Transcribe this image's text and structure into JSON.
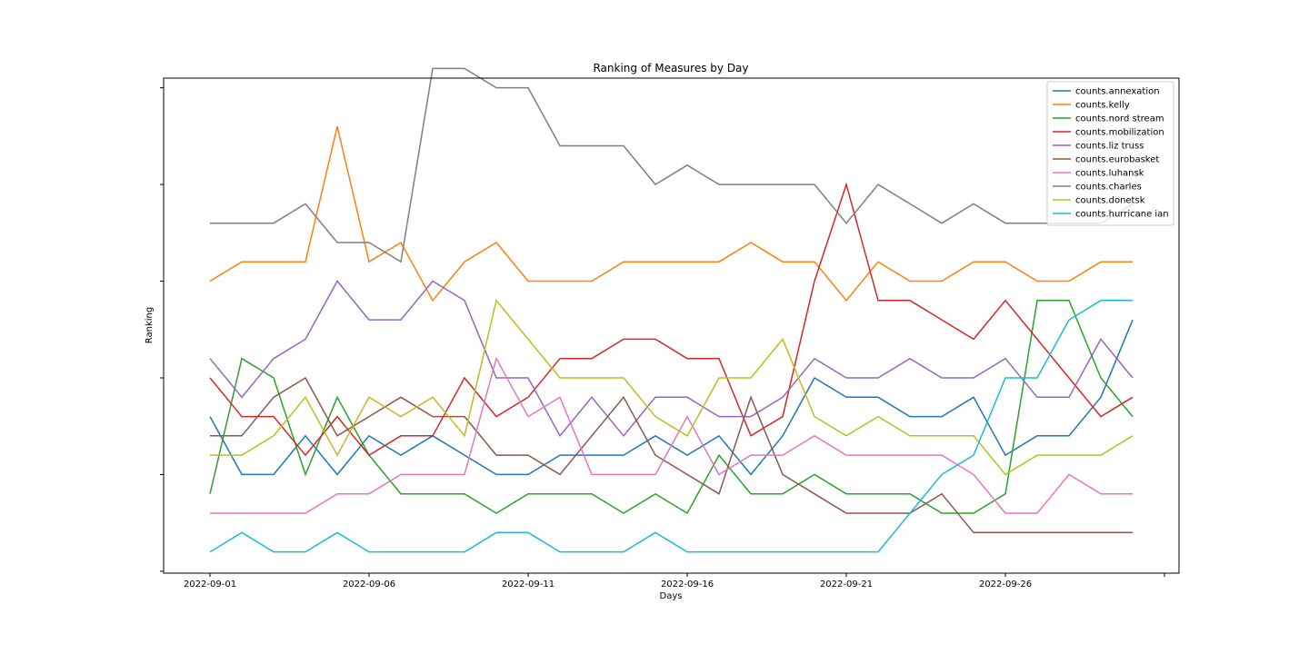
{
  "chart_data": {
    "type": "line",
    "title": "Ranking of Measures by Day",
    "xlabel": "Days",
    "ylabel": "Ranking",
    "x": [
      "2022-09-01",
      "2022-09-02",
      "2022-09-03",
      "2022-09-04",
      "2022-09-05",
      "2022-09-06",
      "2022-09-07",
      "2022-09-08",
      "2022-09-09",
      "2022-09-10",
      "2022-09-11",
      "2022-09-12",
      "2022-09-13",
      "2022-09-14",
      "2022-09-15",
      "2022-09-16",
      "2022-09-17",
      "2022-09-18",
      "2022-09-19",
      "2022-09-20",
      "2022-09-21",
      "2022-09-22",
      "2022-09-23",
      "2022-09-24",
      "2022-09-25",
      "2022-09-26",
      "2022-09-27",
      "2022-09-28",
      "2022-09-29",
      "2022-09-30"
    ],
    "x_ticks": [
      "2022-09-01",
      "2022-09-06",
      "2022-09-11",
      "2022-09-16",
      "2022-09-21",
      "2022-09-26"
    ],
    "ylim": [
      -0.1,
      25.5
    ],
    "y_ticks_labeled": false,
    "grid": false,
    "legend_position": "top-right",
    "series": [
      {
        "name": "counts.annexation",
        "color": "#1f77b4",
        "values": [
          8,
          5,
          5,
          7,
          5,
          7,
          6,
          7,
          6,
          5,
          5,
          6,
          6,
          6,
          7,
          6,
          7,
          5,
          7,
          10,
          9,
          9,
          8,
          8,
          9,
          6,
          7,
          7,
          9,
          13
        ]
      },
      {
        "name": "counts.kelly",
        "color": "#ff7f0e",
        "values": [
          15,
          16,
          16,
          16,
          23,
          16,
          17,
          14,
          16,
          17,
          15,
          15,
          15,
          16,
          16,
          16,
          16,
          17,
          16,
          16,
          14,
          16,
          15,
          15,
          16,
          16,
          15,
          15,
          16,
          16
        ]
      },
      {
        "name": "counts.nord stream",
        "color": "#2ca02c",
        "values": [
          4,
          11,
          10,
          5,
          9,
          6,
          4,
          4,
          4,
          3,
          4,
          4,
          4,
          3,
          4,
          3,
          6,
          4,
          4,
          5,
          4,
          4,
          4,
          3,
          3,
          4,
          14,
          14,
          10,
          8
        ]
      },
      {
        "name": "counts.mobilization",
        "color": "#d62728",
        "values": [
          10,
          8,
          8,
          6,
          8,
          6,
          7,
          7,
          10,
          8,
          9,
          11,
          11,
          12,
          12,
          11,
          11,
          7,
          8,
          15,
          20,
          14,
          14,
          13,
          12,
          14,
          12,
          10,
          8,
          9
        ]
      },
      {
        "name": "counts.liz truss",
        "color": "#9467bd",
        "values": [
          11,
          9,
          11,
          12,
          15,
          13,
          13,
          15,
          14,
          10,
          10,
          7,
          9,
          7,
          9,
          9,
          8,
          8,
          9,
          11,
          10,
          10,
          11,
          10,
          10,
          11,
          9,
          9,
          12,
          10
        ]
      },
      {
        "name": "counts.eurobasket",
        "color": "#8c564b",
        "values": [
          7,
          7,
          9,
          10,
          7,
          8,
          9,
          8,
          8,
          6,
          6,
          5,
          7,
          9,
          6,
          5,
          4,
          9,
          5,
          4,
          3,
          3,
          3,
          4,
          2,
          2,
          2,
          2,
          2,
          2
        ]
      },
      {
        "name": "counts.luhansk",
        "color": "#e377c2",
        "values": [
          3,
          3,
          3,
          3,
          4,
          4,
          5,
          5,
          5,
          11,
          8,
          9,
          5,
          5,
          5,
          8,
          5,
          6,
          6,
          7,
          6,
          6,
          6,
          6,
          5,
          3,
          3,
          5,
          4,
          4
        ]
      },
      {
        "name": "counts.charles",
        "color": "#7f7f7f",
        "values": [
          18,
          18,
          18,
          19,
          17,
          17,
          16,
          26,
          26,
          25,
          25,
          22,
          22,
          22,
          20,
          21,
          20,
          20,
          20,
          20,
          18,
          20,
          19,
          18,
          19,
          18,
          18,
          18,
          18,
          19
        ]
      },
      {
        "name": "counts.donetsk",
        "color": "#bcbd22",
        "values": [
          6,
          6,
          7,
          9,
          6,
          9,
          8,
          9,
          7,
          14,
          12,
          10,
          10,
          10,
          8,
          7,
          10,
          10,
          12,
          8,
          7,
          8,
          7,
          7,
          7,
          5,
          6,
          6,
          6,
          7
        ]
      },
      {
        "name": "counts.hurricane ian",
        "color": "#17becf",
        "values": [
          1,
          2,
          1,
          1,
          2,
          1,
          1,
          1,
          1,
          2,
          2,
          1,
          1,
          1,
          2,
          1,
          1,
          1,
          1,
          1,
          1,
          1,
          3,
          5,
          6,
          10,
          10,
          13,
          14,
          14
        ]
      }
    ]
  }
}
